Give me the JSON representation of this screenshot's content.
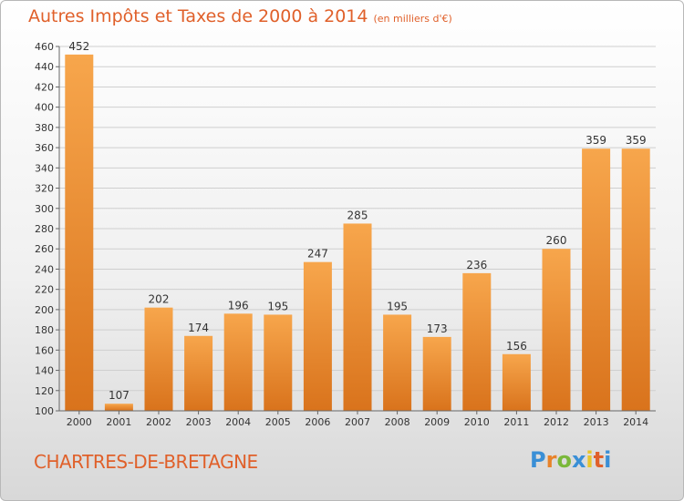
{
  "title": "Autres Impôts et Taxes de 2000 à 2014",
  "subtitle": "(en milliers d'€)",
  "commune": "CHARTRES-DE-BRETAGNE",
  "logo": {
    "text": "Proxiti",
    "colors": [
      "#3a8fd6",
      "#e8832a",
      "#7ab83a",
      "#3a8fd6",
      "#e8c52a",
      "#e0602a",
      "#3a8fd6"
    ]
  },
  "colors": {
    "bar_light": "#f7a64c",
    "bar_dark": "#dd7b22",
    "title": "#e0602a",
    "grid": "#cfcfcf"
  },
  "chart_data": {
    "type": "bar",
    "categories": [
      "2000",
      "2001",
      "2002",
      "2003",
      "2004",
      "2005",
      "2006",
      "2007",
      "2008",
      "2009",
      "2010",
      "2011",
      "2012",
      "2013",
      "2014"
    ],
    "values": [
      452,
      107,
      202,
      174,
      196,
      195,
      247,
      285,
      195,
      173,
      236,
      156,
      260,
      359,
      359
    ],
    "ylim": [
      100,
      460
    ],
    "yticks": [
      100,
      120,
      140,
      160,
      180,
      200,
      220,
      240,
      260,
      280,
      300,
      320,
      340,
      360,
      380,
      400,
      420,
      440,
      460
    ],
    "grid": true,
    "data_labels": true
  }
}
